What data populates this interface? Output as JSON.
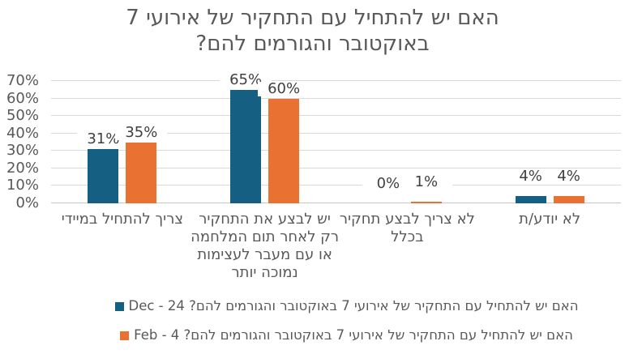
{
  "title": {
    "lines": "האם יש להתחיל עם התחקיר של אירועי 7\nבאוקטובר והגורמים להם?"
  },
  "chart_data": {
    "type": "bar",
    "direction": "rtl",
    "title": "האם יש להתחיל עם התחקיר של אירועי 7 באוקטובר והגורמים להם?",
    "categories": [
      "צריך להתחיל במיידי",
      "יש לבצע את התחקיר רק לאחר תום המלחמה או עם מעבר לעצימות נמוכה יותר",
      "לא צריך לבצע תחקיר בכלל",
      "לא יודע/ת"
    ],
    "category_display_lines": [
      "צריך להתחיל במיידי",
      "יש לבצע את התחקיר\nרק לאחר תום המלחמה\nאו עם מעבר לעצימות\nנמוכה יותר",
      "לא צריך לבצע תחקיר\nבכלל",
      "לא יודע/ת"
    ],
    "series": [
      {
        "name": "האם יש להתחיל עם התחקיר של אירועי 7 באוקטובר והגורמים להם? Dec - 24",
        "color": "#156082",
        "values": [
          31,
          65,
          0,
          4
        ]
      },
      {
        "name": "האם יש להתחיל עם התחקיר של אירועי 7 באוקטובר והגורמים להם? Feb - 4",
        "color": "#E97132",
        "values": [
          35,
          60,
          1,
          4
        ]
      }
    ],
    "data_labels": [
      [
        "31%",
        "65%",
        "0%",
        "4%"
      ],
      [
        "35%",
        "60%",
        "1%",
        "4%"
      ]
    ],
    "yticks": [
      "0%",
      "10%",
      "20%",
      "30%",
      "40%",
      "50%",
      "60%",
      "70%"
    ],
    "ylim": [
      0,
      70
    ],
    "grid": true,
    "legend_position": "bottom"
  },
  "colors": {
    "series_blue": "#156082",
    "series_orange": "#E97132",
    "gridline": "#D9D9D9",
    "axis_line": "#C6C6C6",
    "text": "#595959",
    "data_label_text": "#404040"
  }
}
